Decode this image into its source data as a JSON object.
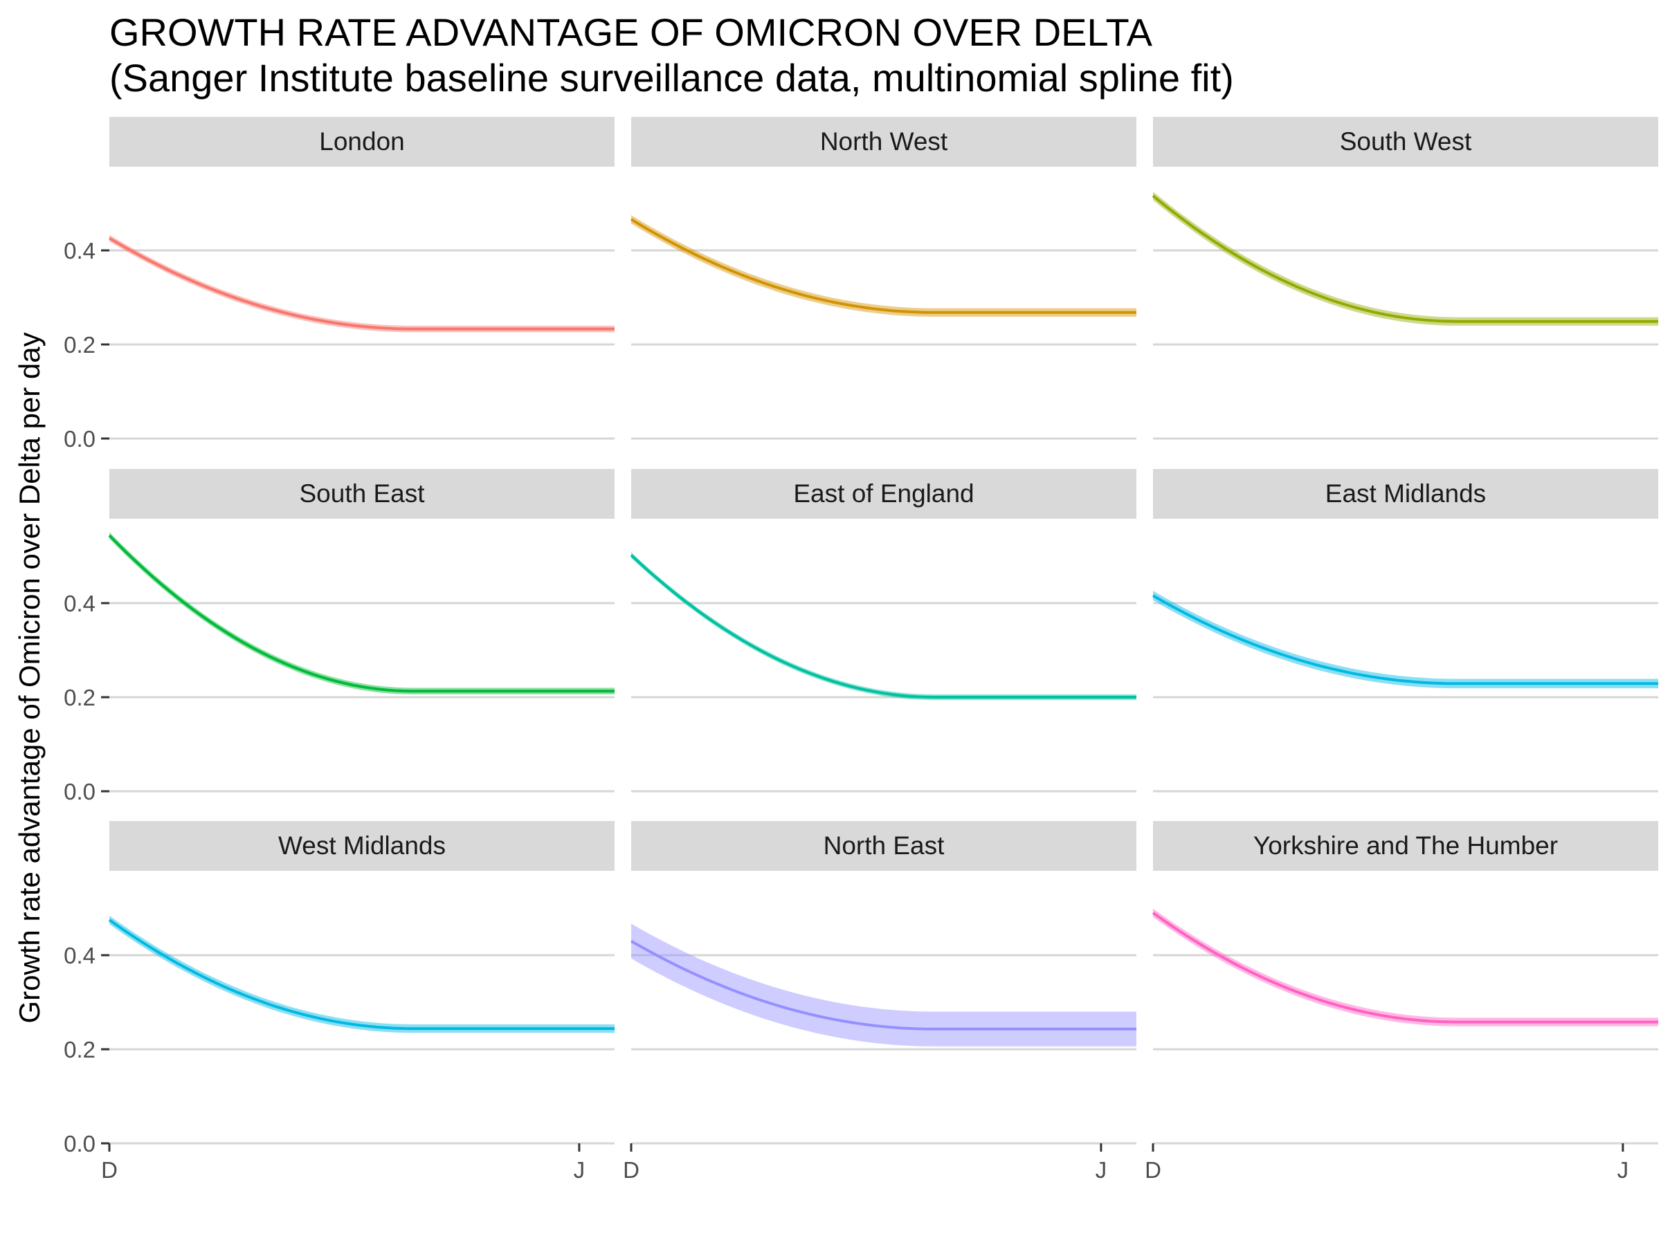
{
  "chart_data": {
    "type": "line",
    "title": "GROWTH RATE ADVANTAGE OF OMICRON OVER DELTA",
    "subtitle": "(Sanger Institute baseline surveillance data, multinomial spline fit)",
    "xlabel": "",
    "ylabel": "Growth rate advantage of Omicron over Delta per day",
    "x_ticks": [
      "D",
      "J"
    ],
    "y_ticks": [
      "0.0",
      "0.2",
      "0.4"
    ],
    "ylim": [
      0,
      0.55
    ],
    "grid": true,
    "layout": "facet 3x3",
    "facets": [
      {
        "region": "London",
        "color": "#F8766D",
        "values": [
          0.426,
          0.233
        ],
        "band_halfwidth": 0.007
      },
      {
        "region": "North West",
        "color": "#D39200",
        "values": [
          0.466,
          0.268
        ],
        "band_halfwidth": 0.009
      },
      {
        "region": "South West",
        "color": "#93AA00",
        "values": [
          0.516,
          0.249
        ],
        "band_halfwidth": 0.009
      },
      {
        "region": "South East",
        "color": "#00BA38",
        "values": [
          0.544,
          0.213
        ],
        "band_halfwidth": 0.007
      },
      {
        "region": "East of England",
        "color": "#00C19F",
        "values": [
          0.502,
          0.2
        ],
        "band_halfwidth": 0.006
      },
      {
        "region": "East Midlands",
        "color": "#00B9E3",
        "values": [
          0.416,
          0.229
        ],
        "band_halfwidth": 0.01
      },
      {
        "region": "West Midlands",
        "color": "#00B9E3",
        "values": [
          0.475,
          0.244
        ],
        "band_halfwidth": 0.009
      },
      {
        "region": "North East",
        "color": "#9590FF",
        "values": [
          0.43,
          0.243
        ],
        "band_halfwidth": 0.037
      },
      {
        "region": "Yorkshire and The Humber",
        "color": "#FF61C3",
        "values": [
          0.49,
          0.258
        ],
        "band_halfwidth": 0.009
      }
    ]
  }
}
